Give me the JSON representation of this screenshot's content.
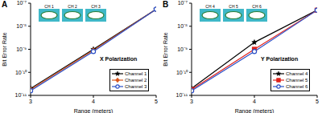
{
  "chart_data": [
    {
      "type": "line",
      "title": "X Polarization",
      "annotations": [
        "A"
      ],
      "inset_labels": [
        "CH 1",
        "CH 2",
        "CH 3"
      ],
      "x_label": "Range (meters)",
      "y_label": "Bit Error Rate",
      "x": [
        3,
        4,
        5
      ],
      "xlim": [
        3,
        5
      ],
      "xticks": [
        3,
        4,
        5
      ],
      "log": "y",
      "ylim": [
        1e-11,
        1e-07
      ],
      "yticks": [
        {
          "value": 1e-11,
          "label": "10⁻¹¹"
        },
        {
          "value": 1e-10,
          "label": "10⁻¹⁰"
        },
        {
          "value": 1e-09,
          "label": "10⁻⁹"
        },
        {
          "value": 1e-08,
          "label": "10⁻⁸"
        },
        {
          "value": 1e-07,
          "label": "10⁻⁷"
        }
      ],
      "grid": false,
      "legend": "lower right",
      "series": [
        {
          "name": "Channel 1",
          "color": "#000000",
          "marker": "star",
          "values": [
            2e-11,
            1e-09,
            5.5e-08
          ]
        },
        {
          "name": "Channel 2",
          "color": "#d95319",
          "marker": "diamond",
          "values": [
            1.8e-11,
            9e-10,
            5.5e-08
          ]
        },
        {
          "name": "Channel 3",
          "color": "#2b4fc7",
          "marker": "circle",
          "values": [
            1.6e-11,
            8e-10,
            5.5e-08
          ]
        }
      ]
    },
    {
      "type": "line",
      "title": "Y Polarization",
      "annotations": [
        "B"
      ],
      "inset_labels": [
        "CH 4",
        "CH 5",
        "CH 6"
      ],
      "x_label": "Range (meters)",
      "y_label": "Bit Error Rate",
      "x": [
        3,
        4,
        5
      ],
      "xlim": [
        3,
        5
      ],
      "xticks": [
        3,
        4,
        5
      ],
      "log": "y",
      "ylim": [
        1e-11,
        1e-07
      ],
      "yticks": [
        {
          "value": 1e-11,
          "label": "10⁻¹¹"
        },
        {
          "value": 1e-10,
          "label": "10⁻¹⁰"
        },
        {
          "value": 1e-09,
          "label": "10⁻⁹"
        },
        {
          "value": 1e-08,
          "label": "10⁻⁸"
        },
        {
          "value": 1e-07,
          "label": "10⁻⁷"
        }
      ],
      "grid": false,
      "legend": "lower right",
      "series": [
        {
          "name": "Channel 4",
          "color": "#000000",
          "marker": "star",
          "values": [
            2e-11,
            2e-09,
            5e-08
          ]
        },
        {
          "name": "Channel 5",
          "color": "#e0221c",
          "marker": "square",
          "values": [
            1.8e-11,
            1e-09,
            5e-08
          ]
        },
        {
          "name": "Channel 6",
          "color": "#2b4fc7",
          "marker": "circle",
          "values": [
            1.6e-11,
            8e-10,
            5e-08
          ]
        }
      ]
    }
  ]
}
